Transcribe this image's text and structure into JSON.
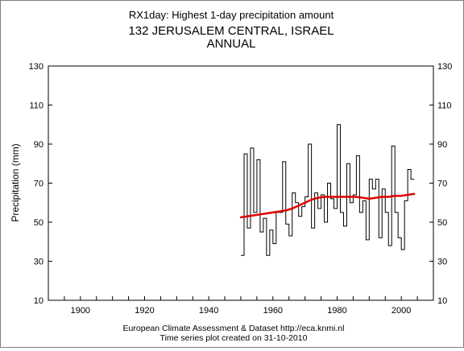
{
  "header": {
    "title": "RX1day: Highest 1-day precipitation amount",
    "station": "132 JERUSALEM CENTRAL, ISRAEL",
    "period": "ANNUAL"
  },
  "footer": {
    "line1": "European Climate Assessment & Dataset  http://eca.knmi.nl",
    "line2": "Time series plot created on 31-10-2010"
  },
  "chart_data": {
    "type": "line",
    "title": "RX1day: Highest 1-day precipitation amount",
    "ylabel": "Precipitation (mm)",
    "xlabel": "",
    "xlim": [
      1890,
      2010
    ],
    "ylim": [
      10,
      130
    ],
    "x_ticks": [
      1900,
      1920,
      1940,
      1960,
      1980,
      2000
    ],
    "y_ticks": [
      10,
      30,
      50,
      70,
      90,
      110,
      130
    ],
    "grid": false,
    "legend": "none",
    "series": [
      {
        "style": "step",
        "color": "#000000",
        "x": [
          1950,
          1951,
          1952,
          1953,
          1954,
          1955,
          1956,
          1957,
          1958,
          1959,
          1960,
          1961,
          1962,
          1963,
          1964,
          1965,
          1966,
          1967,
          1968,
          1969,
          1970,
          1971,
          1972,
          1973,
          1974,
          1975,
          1976,
          1977,
          1978,
          1979,
          1980,
          1981,
          1982,
          1983,
          1984,
          1985,
          1986,
          1987,
          1988,
          1989,
          1990,
          1991,
          1992,
          1993,
          1994,
          1995,
          1996,
          1997,
          1998,
          1999,
          2000,
          2001,
          2002,
          2003
        ],
        "values": [
          33,
          85,
          47,
          88,
          55,
          82,
          45,
          52,
          33,
          46,
          39,
          55,
          55,
          81,
          49,
          43,
          65,
          60,
          53,
          58,
          63,
          90,
          47,
          65,
          57,
          64,
          50,
          70,
          62,
          57,
          100,
          55,
          48,
          80,
          60,
          64,
          84,
          55,
          61,
          41,
          72,
          67,
          72,
          42,
          67,
          55,
          38,
          89,
          55,
          42,
          36,
          61,
          77,
          72
        ]
      },
      {
        "style": "smooth",
        "color": "#e00000",
        "x": [
          1950,
          1952,
          1954,
          1956,
          1958,
          1960,
          1962,
          1964,
          1966,
          1968,
          1970,
          1972,
          1974,
          1976,
          1978,
          1980,
          1982,
          1984,
          1986,
          1988,
          1990,
          1992,
          1994,
          1996,
          1998,
          2000,
          2002,
          2004
        ],
        "values": [
          52.5,
          53.0,
          53.5,
          54.0,
          54.5,
          55.0,
          55.5,
          56.0,
          57.0,
          58.5,
          60.0,
          61.5,
          62.5,
          63.0,
          63.0,
          63.0,
          63.0,
          63.0,
          63.0,
          62.5,
          62.0,
          62.5,
          63.0,
          63.0,
          63.5,
          63.5,
          64.0,
          64.5
        ]
      }
    ]
  }
}
